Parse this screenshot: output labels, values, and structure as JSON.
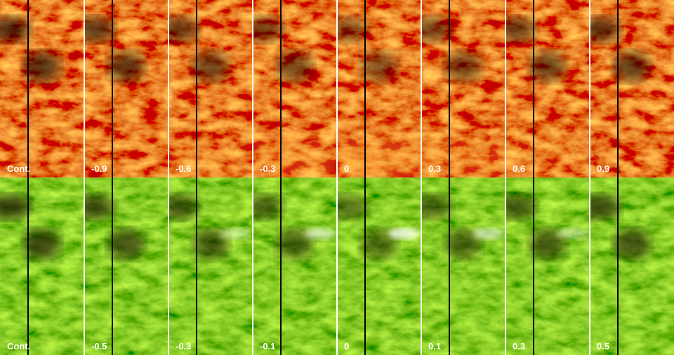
{
  "rows": [
    {
      "labels": [
        "Cont.",
        "-0.9",
        "-0.6",
        "-0.3",
        "0",
        "0.3",
        "0.6",
        "0.9"
      ]
    },
    {
      "labels": [
        "Cont.",
        "-0.5",
        "-0.3",
        "-0.1",
        "0",
        "0.1",
        "0.3",
        "0.5"
      ]
    }
  ]
}
